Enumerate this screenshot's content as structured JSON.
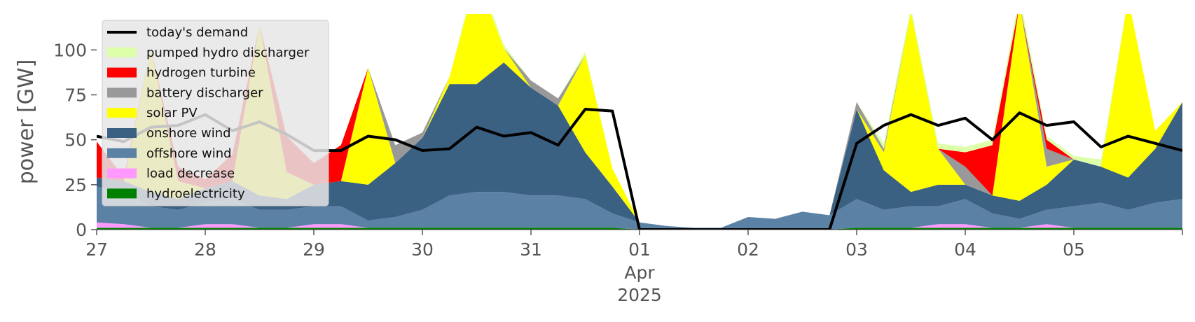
{
  "chart_data": {
    "type": "area",
    "title": "",
    "xlabel": "",
    "ylabel": "power [GW]",
    "ylim": [
      0,
      120
    ],
    "xlim": [
      "2025-03-27",
      "2025-04-06"
    ],
    "yticks": [
      0,
      25,
      50,
      75,
      100
    ],
    "ytick_labels": [
      "0",
      "25",
      "50",
      "75",
      "100"
    ],
    "xticks": [
      {
        "date": "2025-03-27",
        "label": "27",
        "sub": []
      },
      {
        "date": "2025-03-28",
        "label": "28",
        "sub": []
      },
      {
        "date": "2025-03-29",
        "label": "29",
        "sub": []
      },
      {
        "date": "2025-03-30",
        "label": "30",
        "sub": []
      },
      {
        "date": "2025-03-31",
        "label": "31",
        "sub": []
      },
      {
        "date": "2025-04-01",
        "label": "01",
        "sub": [
          "Apr",
          "2025"
        ]
      },
      {
        "date": "2025-04-02",
        "label": "02",
        "sub": []
      },
      {
        "date": "2025-04-03",
        "label": "03",
        "sub": []
      },
      {
        "date": "2025-04-04",
        "label": "04",
        "sub": []
      },
      {
        "date": "2025-04-05",
        "label": "05",
        "sub": []
      }
    ],
    "legend_position": "top-left",
    "grid": false,
    "x": [
      "2025-03-27 00:00",
      "2025-03-27 06:00",
      "2025-03-27 12:00",
      "2025-03-27 18:00",
      "2025-03-28 00:00",
      "2025-03-28 06:00",
      "2025-03-28 12:00",
      "2025-03-28 18:00",
      "2025-03-29 00:00",
      "2025-03-29 06:00",
      "2025-03-29 12:00",
      "2025-03-29 18:00",
      "2025-03-30 00:00",
      "2025-03-30 06:00",
      "2025-03-30 12:00",
      "2025-03-30 18:00",
      "2025-03-31 00:00",
      "2025-03-31 06:00",
      "2025-03-31 12:00",
      "2025-03-31 18:00",
      "2025-04-01 00:00",
      "2025-04-01 06:00",
      "2025-04-01 12:00",
      "2025-04-01 18:00",
      "2025-04-02 00:00",
      "2025-04-02 06:00",
      "2025-04-02 12:00",
      "2025-04-02 18:00",
      "2025-04-03 00:00",
      "2025-04-03 06:00",
      "2025-04-03 12:00",
      "2025-04-03 18:00",
      "2025-04-04 00:00",
      "2025-04-04 06:00",
      "2025-04-04 12:00",
      "2025-04-04 18:00",
      "2025-04-05 00:00",
      "2025-04-05 06:00",
      "2025-04-05 12:00",
      "2025-04-05 18:00",
      "2025-04-06 00:00"
    ],
    "series": [
      {
        "name": "hydroelectricity",
        "color": "#008000",
        "values": [
          1,
          1,
          1,
          1,
          1,
          1,
          1,
          1,
          1,
          1,
          1,
          1,
          1,
          1,
          1,
          1,
          1,
          1,
          1,
          1,
          0,
          0,
          0,
          0,
          0,
          0,
          0,
          0,
          1,
          1,
          1,
          1,
          1,
          1,
          1,
          1,
          1,
          1,
          1,
          1,
          1
        ]
      },
      {
        "name": "load decrease",
        "color": "#ff99ff",
        "values": [
          3,
          2,
          0,
          0,
          2,
          2,
          0,
          0,
          2,
          2,
          0,
          0,
          0,
          0,
          0,
          0,
          0,
          0,
          0,
          0,
          0,
          0,
          0,
          0,
          0,
          0,
          0,
          0,
          0,
          0,
          0,
          2,
          2,
          0,
          0,
          2,
          0,
          0,
          0,
          0,
          0
        ]
      },
      {
        "name": "offshore wind",
        "color": "#5b81a5",
        "values": [
          20,
          18,
          12,
          10,
          12,
          14,
          10,
          10,
          10,
          10,
          4,
          6,
          10,
          18,
          20,
          20,
          18,
          18,
          16,
          8,
          4,
          2,
          1,
          1,
          7,
          6,
          10,
          8,
          16,
          10,
          12,
          10,
          14,
          8,
          5,
          8,
          12,
          14,
          10,
          14,
          16
        ]
      },
      {
        "name": "onshore wind",
        "color": "#3b6182",
        "values": [
          5,
          6,
          8,
          6,
          8,
          10,
          8,
          6,
          12,
          14,
          20,
          30,
          40,
          62,
          60,
          72,
          60,
          50,
          26,
          15,
          0,
          0,
          0,
          0,
          0,
          0,
          0,
          0,
          50,
          22,
          8,
          12,
          8,
          10,
          10,
          14,
          26,
          20,
          18,
          30,
          54
        ]
      },
      {
        "name": "solar PV",
        "color": "#ffff00",
        "values": [
          0,
          0,
          80,
          10,
          0,
          0,
          95,
          15,
          0,
          0,
          65,
          0,
          0,
          4,
          60,
          8,
          0,
          0,
          54,
          10,
          0,
          0,
          0,
          0,
          0,
          0,
          0,
          0,
          0,
          10,
          100,
          20,
          0,
          0,
          110,
          10,
          0,
          0,
          100,
          10,
          0
        ]
      },
      {
        "name": "battery discharger",
        "color": "#999999",
        "values": [
          0,
          0,
          0,
          0,
          0,
          0,
          0,
          0,
          0,
          0,
          0,
          10,
          3,
          0,
          0,
          0,
          4,
          4,
          0,
          0,
          0,
          0,
          0,
          0,
          0,
          0,
          0,
          0,
          4,
          2,
          0,
          0,
          10,
          0,
          0,
          10,
          0,
          0,
          0,
          0,
          0
        ]
      },
      {
        "name": "hydrogen turbine",
        "color": "#ff0000",
        "values": [
          20,
          2,
          0,
          8,
          5,
          15,
          0,
          20,
          12,
          20,
          0,
          0,
          0,
          0,
          0,
          0,
          0,
          0,
          0,
          0,
          0,
          0,
          0,
          0,
          0,
          0,
          0,
          0,
          0,
          0,
          0,
          0,
          8,
          28,
          0,
          5,
          0,
          0,
          0,
          0,
          0
        ]
      },
      {
        "name": "pumped hydro discharger",
        "color": "#ddffaa",
        "values": [
          0,
          0,
          0,
          0,
          0,
          0,
          0,
          0,
          0,
          0,
          0,
          0,
          0,
          0,
          3,
          2,
          0,
          0,
          2,
          0,
          0,
          0,
          0,
          0,
          0,
          0,
          0,
          0,
          0,
          3,
          3,
          3,
          3,
          3,
          5,
          2,
          2,
          4,
          0,
          0,
          0
        ]
      }
    ],
    "legend_order": [
      "today's demand",
      "pumped hydro discharger",
      "hydrogen turbine",
      "battery discharger",
      "solar PV",
      "onshore wind",
      "offshore wind",
      "load decrease",
      "hydroelectricity"
    ],
    "demand_series": {
      "name": "today's demand",
      "color": "#000000",
      "values": [
        52,
        49,
        57,
        58,
        64,
        55,
        60,
        53,
        44,
        44,
        52,
        50,
        44,
        45,
        57,
        52,
        54,
        47,
        67,
        66,
        0,
        0,
        0,
        0,
        0,
        0,
        0,
        0,
        48,
        58,
        64,
        58,
        62,
        50,
        65,
        58,
        60,
        46,
        52,
        48,
        44
      ]
    }
  }
}
